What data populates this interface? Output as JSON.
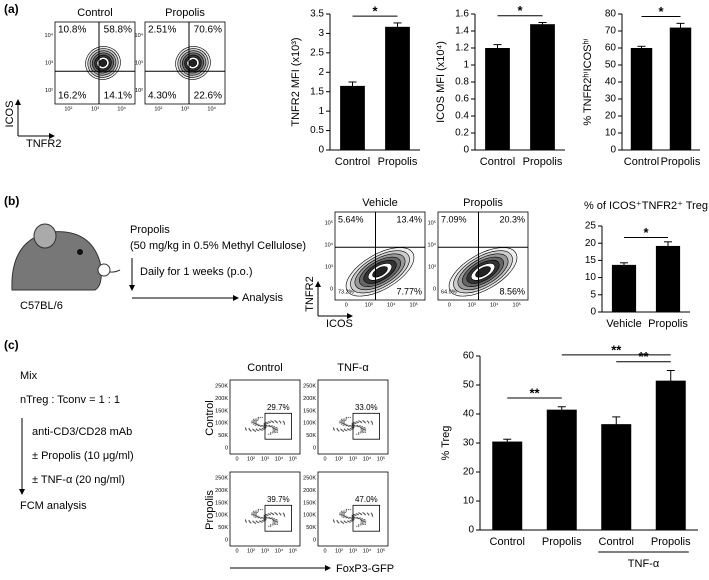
{
  "panel_labels": [
    "(a)",
    "(b)",
    "(c)"
  ],
  "schematic_b": {
    "drug": "Propolis",
    "dose": "(50 mg/kg in 0.5% Methyl Cellulose)",
    "schedule": "Daily for 1 weeks (p.o.)",
    "readout": "Analysis",
    "strain": "C57BL/6"
  },
  "protocol_c": {
    "steps": [
      "Mix",
      "nTreg : Tconv = 1 : 1",
      "anti-CD3/CD28 mAb",
      "± Propolis (10 μg/ml)",
      "± TNF-α (20 ng/ml)",
      "FCM analysis"
    ]
  },
  "flow_a": {
    "x_label": "TNFR2",
    "y_label": "ICOS",
    "x_ticks": [
      "10²",
      "10³",
      "10⁴"
    ],
    "y_ticks": [
      "10²",
      "10³",
      "10⁴"
    ],
    "plots": [
      {
        "title": "Control",
        "quadrants": [
          "10.8%",
          "58.8%",
          "16.2%",
          "14.1%"
        ]
      },
      {
        "title": "Propolis",
        "quadrants": [
          "2.51%",
          "70.6%",
          "4.30%",
          "22.6%"
        ]
      }
    ]
  },
  "flow_b": {
    "x_label": "ICOS",
    "y_label": "TNFR2",
    "x_ticks": [
      "0",
      "10³",
      "10⁴",
      "10⁵"
    ],
    "y_ticks": [
      "0",
      "10³",
      "10⁴",
      "10⁵"
    ],
    "plots": [
      {
        "title": "Vehicle",
        "quadrants": [
          "5.64%",
          "13.4%",
          "73.2%",
          "7.77%"
        ]
      },
      {
        "title": "Propolis",
        "quadrants": [
          "7.09%",
          "20.3%",
          "64.0%",
          "8.56%"
        ]
      }
    ]
  },
  "flow_c": {
    "x_label": "FoxP3-GFP",
    "col_titles": [
      "Control",
      "TNF-α"
    ],
    "row_titles": [
      "Control",
      "Propolis"
    ],
    "x_ticks": [
      "0",
      "10²",
      "10³",
      "10⁴",
      "10⁵"
    ],
    "y_ticks": [
      "0",
      "50K",
      "100K",
      "150K",
      "200K",
      "250K"
    ],
    "gates": [
      "29.7%",
      "33.0%",
      "39.7%",
      "47.0%"
    ]
  },
  "chart_data": [
    {
      "type": "bar",
      "y_label": "TNFR2 MFI (x10³)",
      "categories": [
        "Control",
        "Propolis"
      ],
      "values": [
        1.65,
        3.17
      ],
      "errors": [
        0.1,
        0.1
      ],
      "color": "#000000",
      "ylim": [
        0,
        3.5
      ],
      "yticks": [
        0,
        0.5,
        1,
        1.5,
        2,
        2.5,
        3,
        3.5
      ],
      "significance": [
        {
          "between": [
            0,
            1
          ],
          "label": "*"
        }
      ]
    },
    {
      "type": "bar",
      "y_label": "ICOS MFI (x10⁴)",
      "categories": [
        "Control",
        "Propolis"
      ],
      "values": [
        1.2,
        1.48
      ],
      "errors": [
        0.04,
        0.02
      ],
      "color": "#000000",
      "ylim": [
        0,
        1.6
      ],
      "yticks": [
        0,
        0.2,
        0.4,
        0.6,
        0.8,
        1,
        1.2,
        1.4,
        1.6
      ],
      "significance": [
        {
          "between": [
            0,
            1
          ],
          "label": "*"
        }
      ]
    },
    {
      "type": "bar",
      "y_label": "% TNFR2ʰⁱICOSʰⁱ",
      "categories": [
        "Control",
        "Propolis"
      ],
      "values": [
        60,
        72
      ],
      "errors": [
        1,
        2.5
      ],
      "color": "#000000",
      "ylim": [
        0,
        80
      ],
      "yticks": [
        0,
        10,
        20,
        30,
        40,
        50,
        60,
        70,
        80
      ],
      "significance": [
        {
          "between": [
            0,
            1
          ],
          "label": "*"
        }
      ]
    },
    {
      "type": "bar",
      "title": "% of ICOS⁺TNFR2⁺ Treg",
      "categories": [
        "Vehicle",
        "Propolis"
      ],
      "values": [
        13.7,
        19.2
      ],
      "errors": [
        0.6,
        1.2
      ],
      "color": "#000000",
      "ylim": [
        0,
        25
      ],
      "yticks": [
        0,
        5,
        10,
        15,
        20,
        25
      ],
      "significance": [
        {
          "between": [
            0,
            1
          ],
          "label": "*"
        }
      ]
    },
    {
      "type": "bar",
      "y_label": "% Treg",
      "categories": [
        "Control",
        "Propolis",
        "Control",
        "Propolis"
      ],
      "values": [
        30.5,
        41.5,
        36.5,
        51.5
      ],
      "errors": [
        0.8,
        1,
        2.5,
        3.5
      ],
      "color": "#000000",
      "ylim": [
        0,
        60
      ],
      "yticks": [
        0,
        10,
        20,
        30,
        40,
        50,
        60
      ],
      "group": {
        "label": "TNF-α",
        "categories": [
          2,
          3
        ]
      },
      "significance": [
        {
          "between": [
            0,
            1
          ],
          "label": "**"
        },
        {
          "between": [
            1,
            3
          ],
          "label": "**"
        },
        {
          "between": [
            2,
            3
          ],
          "label": "**"
        }
      ]
    }
  ]
}
